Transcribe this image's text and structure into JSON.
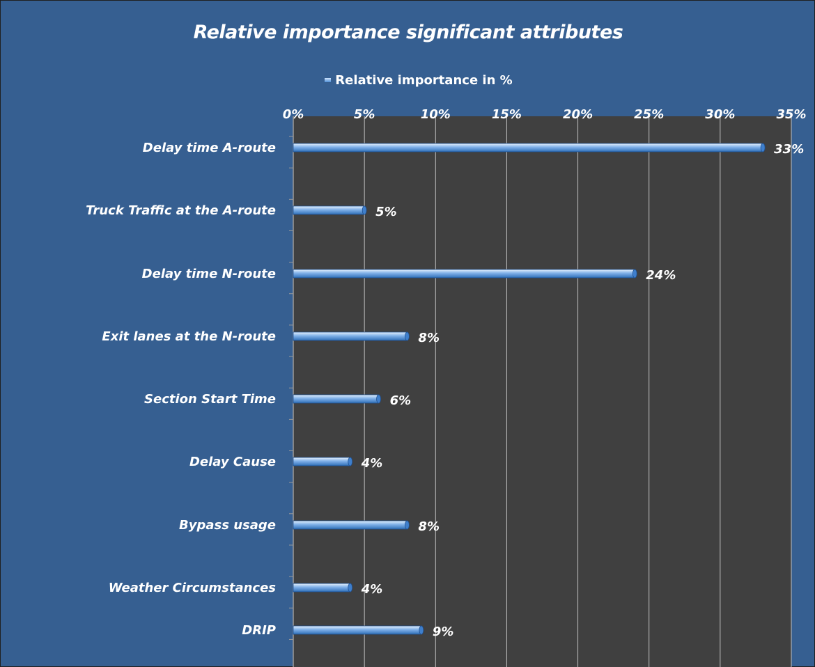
{
  "chart_data": {
    "type": "bar",
    "orientation": "horizontal",
    "title": "Relative importance significant attributes",
    "legend": {
      "position": "top",
      "entries": [
        "Relative importance in %"
      ]
    },
    "series": [
      {
        "name": "Relative importance in %",
        "values": [
          33,
          5,
          24,
          8,
          6,
          4,
          8,
          4,
          9
        ]
      }
    ],
    "categories": [
      "Delay time A-route",
      "Truck Traffic at the A-route",
      "Delay time N-route",
      "Exit lanes at the  N-route",
      "Section Start Time",
      "Delay Cause",
      "Bypass usage",
      "Weather Circumstances",
      "DRIP"
    ],
    "data_labels": [
      "33%",
      "5%",
      "24%",
      "8%",
      "6%",
      "4%",
      "8%",
      "4%",
      "9%"
    ],
    "xlim": [
      0,
      35
    ],
    "xticks": [
      "0%",
      "5%",
      "10%",
      "15%",
      "20%",
      "25%",
      "30%",
      "35%"
    ],
    "grid": "vertical",
    "colors": {
      "frame": "#365f91",
      "plot_area": "#404040",
      "bar": "#4f8fd6",
      "bar_highlight": "#dcebfc",
      "gridline": "#bfbfbf",
      "text": "#ffffff"
    }
  }
}
